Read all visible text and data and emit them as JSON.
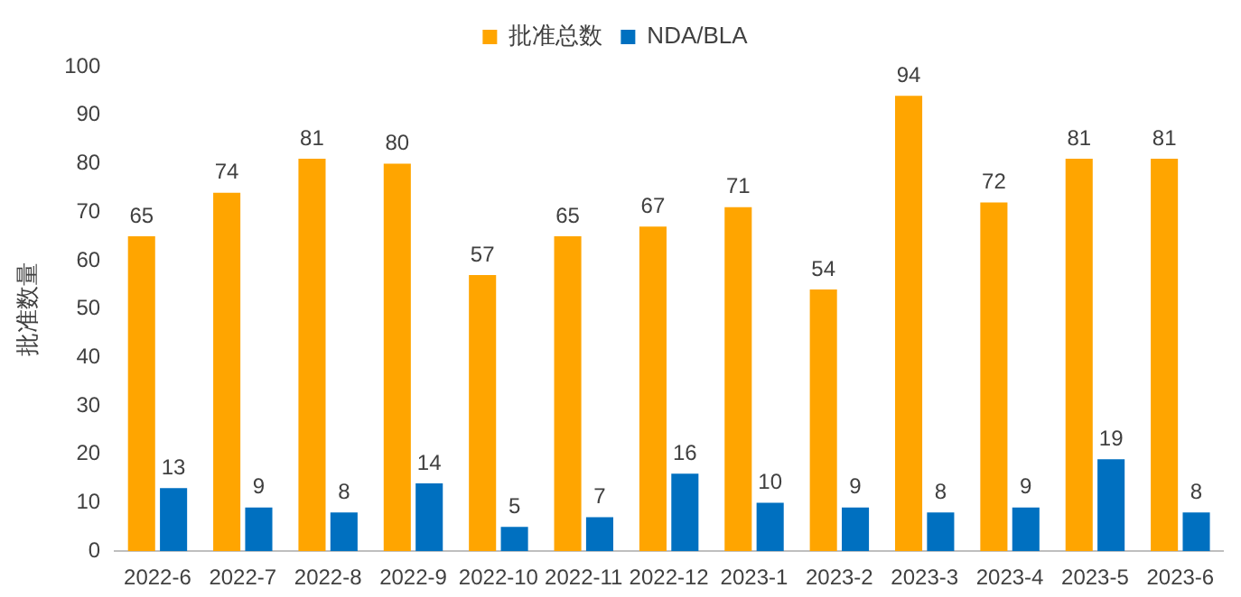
{
  "chart_data": {
    "type": "bar",
    "ylabel": "批准数量",
    "categories": [
      "2022-6",
      "2022-7",
      "2022-8",
      "2022-9",
      "2022-10",
      "2022-11",
      "2022-12",
      "2023-1",
      "2023-2",
      "2023-3",
      "2023-4",
      "2023-5",
      "2023-6"
    ],
    "series": [
      {
        "name": "批准总数",
        "color": "#ffa500",
        "values": [
          65,
          74,
          81,
          80,
          57,
          65,
          67,
          71,
          54,
          94,
          72,
          81,
          81
        ]
      },
      {
        "name": "NDA/BLA",
        "color": "#0070c0",
        "values": [
          13,
          9,
          8,
          14,
          5,
          7,
          16,
          10,
          9,
          8,
          9,
          19,
          8
        ]
      }
    ],
    "ylim": [
      0,
      100
    ],
    "yticks": [
      0,
      10,
      20,
      30,
      40,
      50,
      60,
      70,
      80,
      90,
      100
    ],
    "grid": false,
    "legend": "top",
    "data_labels": true
  }
}
